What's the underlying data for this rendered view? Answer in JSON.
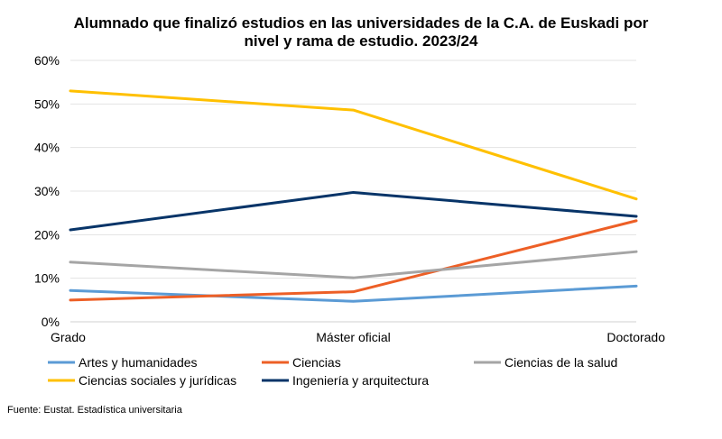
{
  "chart_data": {
    "type": "line",
    "title_lines": [
      "Alumnado que finalizó estudios en las universidades de la C.A. de Euskadi por",
      "nivel y rama de estudio. 2023/24"
    ],
    "categories": [
      "Grado",
      "Máster oficial",
      "Doctorado"
    ],
    "ylim": [
      0,
      60
    ],
    "yticks": [
      0,
      10,
      20,
      30,
      40,
      50,
      60
    ],
    "ytick_labels": [
      "0%",
      "10%",
      "20%",
      "30%",
      "40%",
      "50%",
      "60%"
    ],
    "grid": true,
    "series": [
      {
        "name": "Artes y humanidades",
        "values": [
          7.2,
          4.7,
          8.2
        ],
        "color": "#5b9bd5"
      },
      {
        "name": "Ciencias",
        "values": [
          5.0,
          6.9,
          23.2
        ],
        "color": "#ed5f26"
      },
      {
        "name": "Ciencias de la salud",
        "values": [
          13.7,
          10.1,
          16.1
        ],
        "color": "#a5a5a5"
      },
      {
        "name": "Ciencias sociales y jurídicas",
        "values": [
          53.0,
          48.6,
          28.2
        ],
        "color": "#ffc000"
      },
      {
        "name": "Ingeniería y arquitectura",
        "values": [
          21.1,
          29.7,
          24.2
        ],
        "color": "#073468"
      }
    ],
    "legend_position": "bottom"
  },
  "source": "Fuente: Eustat. Estadística universitaria"
}
